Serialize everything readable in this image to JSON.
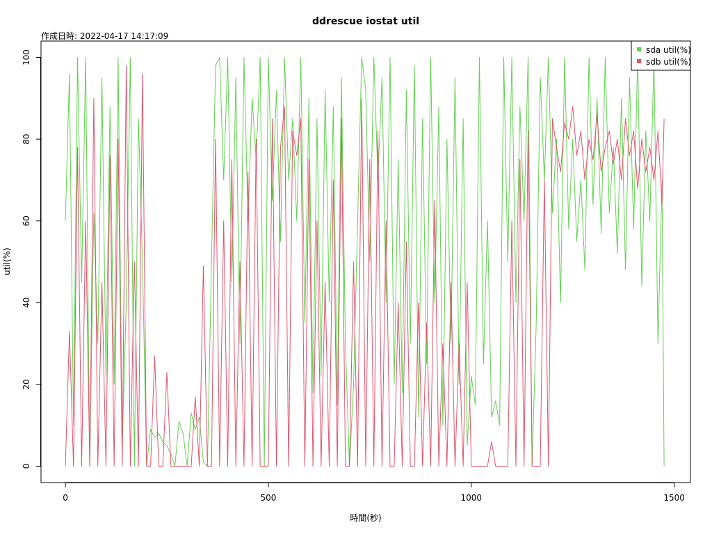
{
  "chart_data": {
    "type": "line",
    "title": "ddrescue iostat util",
    "subtitle": "作成日時: 2022-04-17 14:17:09",
    "xlabel": "時間(秒)",
    "ylabel": "util(%)",
    "xlim": [
      -60,
      1540
    ],
    "ylim": [
      -4,
      104
    ],
    "x_ticks": [
      0,
      500,
      1000,
      1500
    ],
    "y_ticks": [
      0,
      20,
      40,
      60,
      80,
      100
    ],
    "legend_position": "top-right",
    "grid": false,
    "series": [
      {
        "name": "sda util(%)",
        "color": "#61d04f",
        "x": [
          0,
          10,
          20,
          30,
          40,
          50,
          60,
          70,
          80,
          90,
          100,
          110,
          120,
          130,
          140,
          150,
          160,
          170,
          180,
          190,
          200,
          210,
          220,
          230,
          240,
          250,
          260,
          270,
          280,
          290,
          300,
          310,
          320,
          330,
          340,
          350,
          360,
          370,
          380,
          390,
          400,
          410,
          420,
          430,
          440,
          450,
          460,
          470,
          480,
          490,
          500,
          510,
          520,
          530,
          540,
          550,
          560,
          570,
          580,
          590,
          600,
          610,
          620,
          630,
          640,
          650,
          660,
          670,
          680,
          690,
          700,
          710,
          720,
          730,
          740,
          750,
          760,
          770,
          780,
          790,
          800,
          810,
          820,
          830,
          840,
          850,
          860,
          870,
          880,
          890,
          900,
          910,
          920,
          930,
          940,
          950,
          960,
          970,
          980,
          990,
          1000,
          1010,
          1020,
          1030,
          1040,
          1050,
          1060,
          1070,
          1080,
          1090,
          1100,
          1110,
          1120,
          1130,
          1140,
          1150,
          1160,
          1170,
          1180,
          1190,
          1200,
          1210,
          1220,
          1230,
          1240,
          1250,
          1260,
          1270,
          1280,
          1290,
          1300,
          1310,
          1320,
          1330,
          1340,
          1350,
          1360,
          1370,
          1380,
          1390,
          1400,
          1410,
          1420,
          1430,
          1440,
          1450,
          1460,
          1470,
          1475
        ],
        "values": [
          60,
          96,
          10,
          100,
          45,
          100,
          0,
          62,
          30,
          95,
          22,
          88,
          20,
          100,
          5,
          40,
          100,
          0,
          85,
          50,
          0,
          9,
          7,
          8,
          6,
          5,
          3,
          0,
          11,
          8,
          0,
          13,
          9,
          12,
          1,
          0,
          50,
          98,
          100,
          70,
          100,
          45,
          95,
          30,
          100,
          60,
          90,
          75,
          100,
          0,
          100,
          65,
          92,
          55,
          100,
          70,
          85,
          60,
          100,
          35,
          90,
          18,
          85,
          22,
          92,
          40,
          88,
          15,
          95,
          30,
          0,
          20,
          60,
          100,
          92,
          50,
          100,
          70,
          95,
          40,
          100,
          20,
          75,
          18,
          92,
          30,
          98,
          12,
          85,
          25,
          100,
          40,
          88,
          10,
          80,
          30,
          95,
          20,
          85,
          5,
          22,
          15,
          100,
          25,
          60,
          12,
          16,
          10,
          100,
          50,
          100,
          40,
          88,
          60,
          100,
          0,
          35,
          95,
          70,
          100,
          62,
          80,
          40,
          100,
          58,
          80,
          55,
          70,
          48,
          100,
          64,
          90,
          57,
          100,
          62,
          78,
          52,
          90,
          48,
          95,
          58,
          100,
          44,
          82,
          60,
          100,
          30,
          70,
          0
        ]
      },
      {
        "name": "sdb util(%)",
        "color": "#df536b",
        "x": [
          0,
          10,
          20,
          30,
          40,
          50,
          60,
          70,
          80,
          90,
          100,
          110,
          120,
          130,
          140,
          150,
          160,
          170,
          180,
          190,
          200,
          210,
          220,
          230,
          240,
          250,
          260,
          270,
          280,
          290,
          300,
          310,
          320,
          330,
          340,
          350,
          360,
          370,
          380,
          390,
          400,
          410,
          420,
          430,
          440,
          450,
          460,
          470,
          480,
          490,
          500,
          510,
          520,
          530,
          540,
          550,
          560,
          570,
          580,
          590,
          600,
          610,
          620,
          630,
          640,
          650,
          660,
          670,
          680,
          690,
          700,
          710,
          720,
          730,
          740,
          750,
          760,
          770,
          780,
          790,
          800,
          810,
          820,
          830,
          840,
          850,
          860,
          870,
          880,
          890,
          900,
          910,
          920,
          930,
          940,
          950,
          960,
          970,
          980,
          990,
          1000,
          1010,
          1020,
          1030,
          1040,
          1050,
          1060,
          1070,
          1080,
          1090,
          1100,
          1110,
          1120,
          1130,
          1140,
          1150,
          1160,
          1170,
          1180,
          1190,
          1200,
          1210,
          1220,
          1230,
          1240,
          1250,
          1260,
          1270,
          1280,
          1290,
          1300,
          1310,
          1320,
          1330,
          1340,
          1350,
          1360,
          1370,
          1380,
          1390,
          1400,
          1410,
          1420,
          1430,
          1440,
          1450,
          1460,
          1470,
          1475
        ],
        "values": [
          0,
          33,
          0,
          78,
          0,
          60,
          0,
          90,
          0,
          45,
          0,
          76,
          0,
          80,
          0,
          98,
          0,
          50,
          0,
          96,
          0,
          0,
          27,
          0,
          0,
          23,
          0,
          0,
          0,
          0,
          0,
          0,
          17,
          0,
          49,
          0,
          0,
          80,
          0,
          60,
          0,
          75,
          0,
          50,
          0,
          72,
          0,
          80,
          0,
          0,
          0,
          85,
          0,
          78,
          88,
          0,
          82,
          76,
          85,
          0,
          75,
          0,
          60,
          0,
          45,
          0,
          70,
          0,
          85,
          0,
          0,
          50,
          0,
          90,
          0,
          75,
          0,
          82,
          0,
          60,
          0,
          0,
          40,
          0,
          55,
          0,
          0,
          40,
          0,
          35,
          0,
          65,
          0,
          30,
          0,
          45,
          0,
          30,
          0,
          45,
          0,
          0,
          0,
          0,
          0,
          6,
          0,
          0,
          0,
          0,
          60,
          0,
          75,
          0,
          82,
          0,
          0,
          0,
          70,
          0,
          85,
          78,
          72,
          84,
          80,
          88,
          76,
          82,
          70,
          80,
          75,
          86,
          72,
          78,
          82,
          74,
          80,
          70,
          85,
          76,
          82,
          68,
          80,
          72,
          78,
          70,
          82,
          64,
          85
        ]
      }
    ]
  }
}
